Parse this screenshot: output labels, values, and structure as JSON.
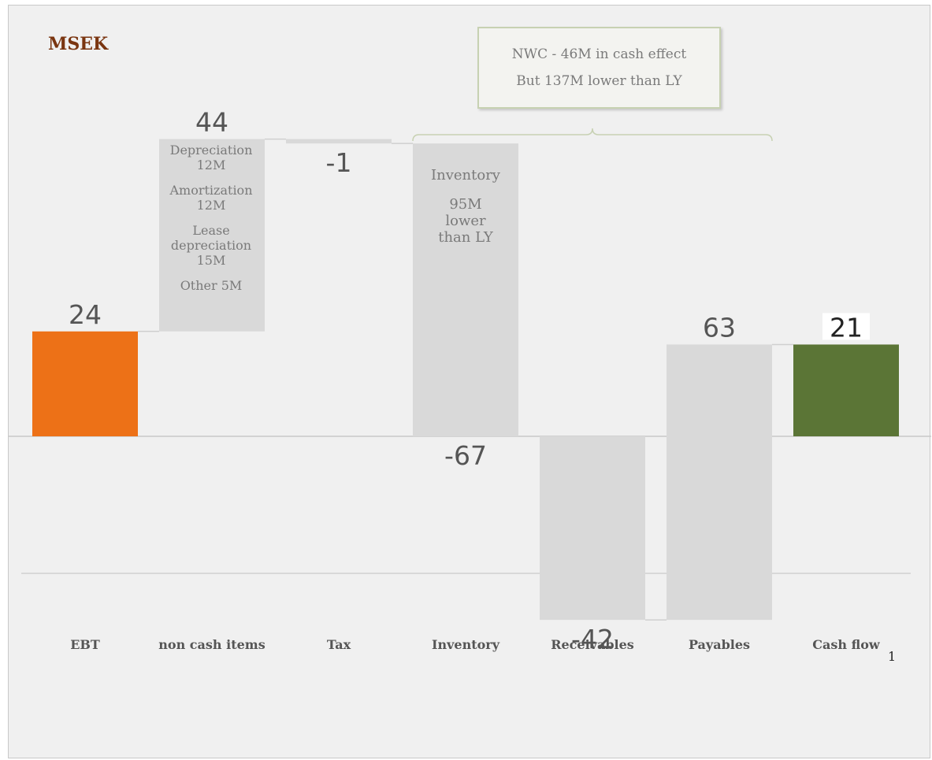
{
  "unit_label": "MSEK",
  "footnote": "1",
  "nwc_callout": {
    "line1": "NWC - 46M in cash effect",
    "line2": "But 137M lower than LY"
  },
  "bar_annotations": {
    "non_cash_items": [
      "Depreciation",
      "12M",
      "Amortization",
      "12M",
      "Lease",
      "depreciation",
      "15M",
      "Other 5M"
    ],
    "inventory": [
      "Inventory",
      "95M",
      "lower",
      "than  LY"
    ]
  },
  "colors": {
    "ebt": "#ed7117",
    "cash_flow": "#5b7536",
    "intermediate": "#d9d9d9",
    "unit_label": "#7a3510"
  },
  "chart_data": {
    "type": "waterfall",
    "categories": [
      "EBT",
      "non cash items",
      "Tax",
      "Inventory",
      "Receivables",
      "Payables",
      "Cash flow"
    ],
    "values": [
      24,
      44,
      -1,
      -67,
      -42,
      63,
      21
    ],
    "data_labels": [
      "24",
      "44",
      "-1",
      "-67",
      "-42",
      "63",
      "21"
    ],
    "kinds": [
      "total",
      "delta",
      "delta",
      "delta",
      "delta",
      "delta",
      "total"
    ],
    "title": "",
    "xlabel": "",
    "ylabel": "",
    "grid": false,
    "legend": "none"
  }
}
